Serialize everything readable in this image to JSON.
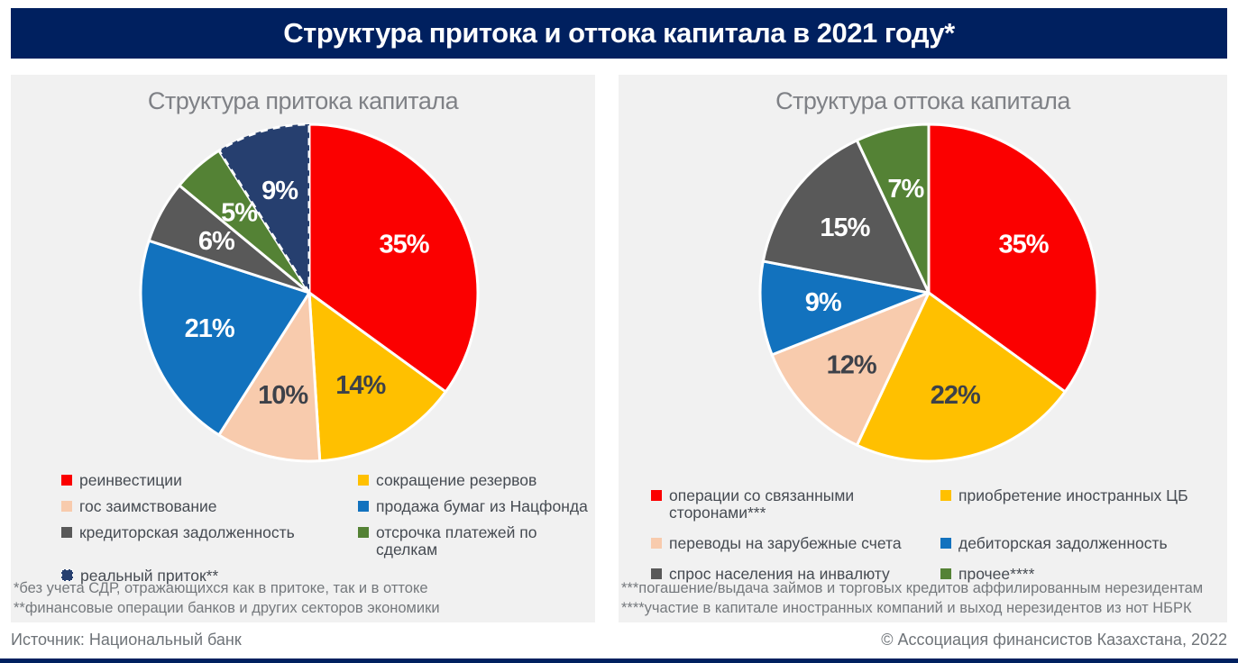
{
  "page": {
    "title": "Структура притока и оттока капитала в 2021 году*",
    "source": "Источник: Национальный банк",
    "credit": "© Ассоциация финансистов Казахстана, 2022"
  },
  "colors": {
    "page_bg": "#FFFFFF",
    "title_bar_bg": "#00205F",
    "title_text": "#FFFFFF",
    "panel_bg": "#F1F1F1",
    "panel_title_text": "#7F8186",
    "legend_text": "#464B52",
    "footnote_text": "#75797D",
    "source_text": "#6E7378",
    "slice_separator": "#FFFFFF"
  },
  "chart_data": [
    {
      "type": "pie",
      "title": "Структура притока капитала",
      "unit": "%",
      "start_angle_deg": 0,
      "direction": "clockwise",
      "legend_position": "bottom",
      "slices": [
        {
          "label": "реинвестиции",
          "value": 35,
          "color": "#FB0000",
          "text_color": "#FFFFFF"
        },
        {
          "label": "сокращение резервов",
          "value": 14,
          "color": "#FFC000",
          "text_color": "#3D4149"
        },
        {
          "label": "гос заимствование",
          "value": 10,
          "color": "#F8CBAD",
          "text_color": "#3D4149"
        },
        {
          "label": "продажа бумаг из Нацфонда",
          "value": 21,
          "color": "#1272BE",
          "text_color": "#FFFFFF"
        },
        {
          "label": "кредиторская задолженность",
          "value": 6,
          "color": "#595959",
          "text_color": "#FFFFFF"
        },
        {
          "label": "отсрочка платежей по сделкам",
          "value": 5,
          "color": "#548235",
          "text_color": "#FFFFFF"
        },
        {
          "label": "реальный приток**",
          "value": 9,
          "color": "#263F6F",
          "text_color": "#FFFFFF",
          "dashed": true
        }
      ],
      "legend_order": [
        0,
        2,
        4,
        6,
        1,
        3,
        5
      ],
      "footnotes": [
        "*без учета СДР, отражающихся как в притоке, так и в оттоке",
        "**финансовые операции банков и других секторов экономики"
      ]
    },
    {
      "type": "pie",
      "title": "Структура оттока капитала",
      "unit": "%",
      "start_angle_deg": 0,
      "direction": "clockwise",
      "legend_position": "bottom",
      "slices": [
        {
          "label": "операции со связанными сторонами***",
          "value": 35,
          "color": "#FB0000",
          "text_color": "#FFFFFF"
        },
        {
          "label": "приобретение иностранных ЦБ",
          "value": 22,
          "color": "#FFC000",
          "text_color": "#3D4149"
        },
        {
          "label": "переводы на зарубежные счета",
          "value": 12,
          "color": "#F8CBAD",
          "text_color": "#3D4149"
        },
        {
          "label": "дебиторская задолженность",
          "value": 9,
          "color": "#1272BE",
          "text_color": "#FFFFFF"
        },
        {
          "label": "спрос населения на инвалюту",
          "value": 15,
          "color": "#595959",
          "text_color": "#FFFFFF"
        },
        {
          "label": "прочее****",
          "value": 7,
          "color": "#548235",
          "text_color": "#FFFFFF"
        }
      ],
      "legend_order": [
        0,
        2,
        4,
        1,
        3,
        5
      ],
      "footnotes": [
        "***погашение/выдача займов и торговых кредитов аффилированным нерезидентам",
        "****участие в капитале иностранных компаний и выход нерезидентов из нот НБРК"
      ]
    }
  ]
}
